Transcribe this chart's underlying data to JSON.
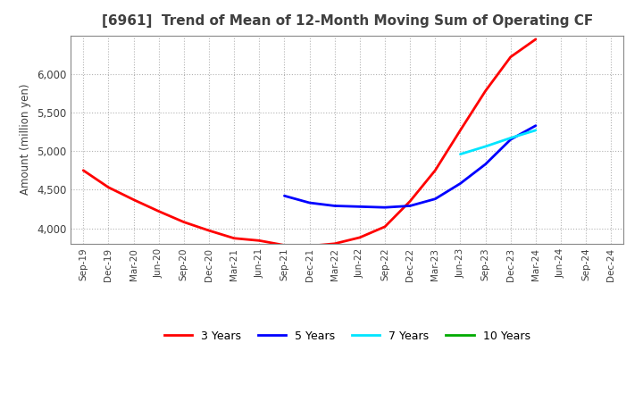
{
  "title": "[6961]  Trend of Mean of 12-Month Moving Sum of Operating CF",
  "ylabel": "Amount (million yen)",
  "title_color": "#404040",
  "label_color": "#404040",
  "background_color": "#ffffff",
  "grid_color": "#aaaaaa",
  "ylim": [
    3800,
    6500
  ],
  "yticks": [
    4000,
    4500,
    5000,
    5500,
    6000
  ],
  "x_labels": [
    "Sep-19",
    "Dec-19",
    "Mar-20",
    "Jun-20",
    "Sep-20",
    "Dec-20",
    "Mar-21",
    "Jun-21",
    "Sep-21",
    "Dec-21",
    "Mar-22",
    "Jun-22",
    "Sep-22",
    "Dec-22",
    "Mar-23",
    "Jun-23",
    "Sep-23",
    "Dec-23",
    "Mar-24",
    "Jun-24",
    "Sep-24",
    "Dec-24"
  ],
  "series_3y": {
    "label": "3 Years",
    "color": "#ff0000",
    "x": [
      0,
      1,
      2,
      3,
      4,
      5,
      6,
      7,
      8,
      9,
      10,
      11,
      12,
      13,
      14,
      15,
      16,
      17,
      18
    ],
    "y": [
      4750,
      4530,
      4370,
      4220,
      4080,
      3970,
      3870,
      3840,
      3780,
      3770,
      3800,
      3880,
      4020,
      4350,
      4750,
      5270,
      5780,
      6220,
      6450
    ]
  },
  "series_5y": {
    "label": "5 Years",
    "color": "#0000ff",
    "x": [
      8,
      9,
      10,
      11,
      12,
      13,
      14,
      15,
      16,
      17,
      18
    ],
    "y": [
      4420,
      4330,
      4290,
      4280,
      4270,
      4290,
      4380,
      4580,
      4830,
      5150,
      5330
    ]
  },
  "series_7y": {
    "label": "7 Years",
    "color": "#00e5ff",
    "x": [
      15,
      16,
      17,
      18
    ],
    "y": [
      4960,
      5060,
      5170,
      5270
    ]
  },
  "series_10y": {
    "label": "10 Years",
    "color": "#00aa00",
    "x": [],
    "y": []
  },
  "legend_colors": [
    "#ff0000",
    "#0000ff",
    "#00e5ff",
    "#00aa00"
  ],
  "legend_labels": [
    "3 Years",
    "5 Years",
    "7 Years",
    "10 Years"
  ]
}
